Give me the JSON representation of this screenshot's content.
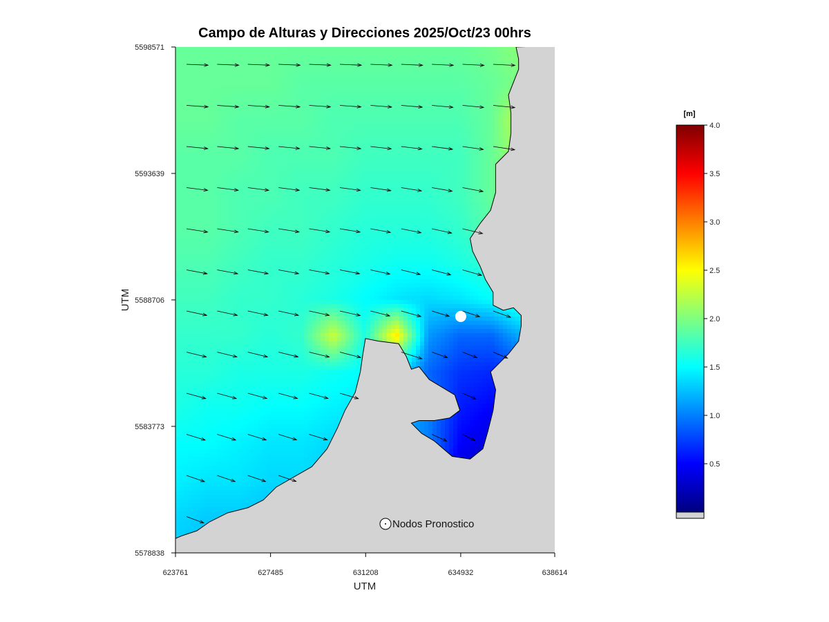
{
  "colors": {
    "land": "#d3d3d3",
    "coast": "#000000",
    "arrow": "#000000",
    "node": "#ffffff"
  },
  "chart_data": {
    "type": "heatmap",
    "title": "Campo de Alturas y Direcciones 2025/Oct/23  00hrs",
    "xlabel": "UTM",
    "ylabel": "UTM",
    "xlim": [
      623761,
      638614
    ],
    "ylim": [
      5578838,
      5598571
    ],
    "xticks": [
      "623761",
      "627485",
      "631208",
      "634932",
      "638614"
    ],
    "yticks": [
      "5578838",
      "5583773",
      "5588706",
      "5593639",
      "5598571"
    ],
    "colorbar": {
      "unit": "[m]",
      "range": [
        0,
        4.0
      ],
      "ticks": [
        "0.5",
        "1.0",
        "1.5",
        "2.0",
        "2.5",
        "3.0",
        "3.5",
        "4.0"
      ],
      "colormap": "jet"
    },
    "legend": {
      "label": "Nodos Pronostico",
      "position": "bottom-right"
    },
    "forecast_nodes": [
      {
        "x": 634932,
        "y": 5588060
      }
    ],
    "coastline_main": [
      [
        623761,
        5579400
      ],
      [
        624000,
        5579500
      ],
      [
        624600,
        5579700
      ],
      [
        625100,
        5580050
      ],
      [
        625800,
        5580400
      ],
      [
        626600,
        5580600
      ],
      [
        627200,
        5580900
      ],
      [
        627700,
        5581400
      ],
      [
        628400,
        5581800
      ],
      [
        629100,
        5582200
      ],
      [
        629700,
        5582900
      ],
      [
        630100,
        5583700
      ],
      [
        630400,
        5584400
      ],
      [
        630800,
        5585100
      ],
      [
        631000,
        5585900
      ],
      [
        631100,
        5586600
      ],
      [
        631200,
        5587200
      ],
      [
        631700,
        5587100
      ],
      [
        632500,
        5587000
      ],
      [
        632800,
        5586500
      ],
      [
        633000,
        5586000
      ],
      [
        633300,
        5586100
      ],
      [
        633700,
        5585600
      ],
      [
        634200,
        5585300
      ],
      [
        634700,
        5585000
      ],
      [
        634900,
        5584400
      ],
      [
        634500,
        5584100
      ],
      [
        633900,
        5584000
      ],
      [
        633300,
        5584000
      ],
      [
        633000,
        5583900
      ],
      [
        633400,
        5583500
      ],
      [
        633900,
        5583200
      ],
      [
        634600,
        5582600
      ],
      [
        635300,
        5582500
      ],
      [
        635800,
        5582900
      ],
      [
        636000,
        5583600
      ],
      [
        636200,
        5584400
      ],
      [
        636300,
        5585200
      ],
      [
        636100,
        5585900
      ],
      [
        636800,
        5586600
      ],
      [
        637200,
        5587100
      ],
      [
        637300,
        5587700
      ],
      [
        637300,
        5588100
      ],
      [
        637000,
        5588400
      ],
      [
        636600,
        5588300
      ],
      [
        636200,
        5588500
      ],
      [
        636200,
        5589000
      ],
      [
        635900,
        5589500
      ],
      [
        635700,
        5590000
      ],
      [
        635400,
        5590600
      ],
      [
        635300,
        5591100
      ],
      [
        635700,
        5591700
      ],
      [
        636100,
        5592200
      ],
      [
        636300,
        5592900
      ],
      [
        636300,
        5593500
      ],
      [
        636300,
        5594000
      ],
      [
        636800,
        5594500
      ],
      [
        636900,
        5595200
      ],
      [
        636900,
        5596000
      ],
      [
        636800,
        5596700
      ],
      [
        637000,
        5597200
      ],
      [
        637200,
        5597700
      ],
      [
        637200,
        5598100
      ],
      [
        637100,
        5598571
      ]
    ],
    "height_field_m": [
      [
        1.9,
        1.9,
        1.9,
        1.9,
        1.9,
        1.9,
        1.9,
        1.9,
        1.9,
        1.9,
        1.95,
        2.05,
        2.2
      ],
      [
        1.9,
        1.9,
        1.9,
        1.9,
        1.85,
        1.85,
        1.85,
        1.85,
        1.85,
        1.85,
        1.9,
        2.0,
        2.15
      ],
      [
        1.9,
        1.9,
        1.85,
        1.85,
        1.85,
        1.8,
        1.8,
        1.8,
        1.8,
        1.8,
        1.9,
        2.3,
        2.7
      ],
      [
        1.85,
        1.85,
        1.85,
        1.8,
        1.8,
        1.8,
        1.75,
        1.75,
        1.75,
        1.75,
        1.9,
        2.2,
        2.4
      ],
      [
        1.85,
        1.85,
        1.8,
        1.8,
        1.75,
        1.75,
        1.7,
        1.7,
        1.7,
        1.75,
        1.9,
        2.2,
        2.3
      ],
      [
        1.85,
        1.85,
        1.8,
        1.75,
        1.75,
        1.7,
        1.65,
        1.65,
        1.65,
        1.7,
        1.85,
        2.1,
        2.2
      ],
      [
        1.8,
        1.8,
        1.75,
        1.7,
        1.7,
        1.65,
        1.6,
        1.55,
        1.55,
        1.6,
        1.7,
        2.0,
        2.1
      ],
      [
        1.75,
        1.75,
        1.7,
        1.7,
        1.65,
        1.6,
        1.5,
        1.4,
        1.35,
        1.4,
        1.5,
        1.7,
        1.9
      ],
      [
        1.7,
        1.7,
        1.7,
        1.65,
        1.7,
        2.3,
        1.6,
        2.6,
        1.1,
        0.9,
        0.9,
        1.2,
        1.4
      ],
      [
        1.65,
        1.65,
        1.6,
        1.6,
        1.6,
        1.55,
        1.5,
        1.4,
        0.9,
        0.7,
        0.65,
        0.75,
        1.0
      ],
      [
        1.6,
        1.55,
        1.55,
        1.5,
        1.5,
        1.45,
        1.4,
        1.3,
        1.0,
        0.6,
        0.5,
        0.55,
        0.8
      ],
      [
        1.5,
        1.5,
        1.45,
        1.4,
        1.4,
        1.35,
        1.3,
        1.2,
        1.0,
        0.5,
        0.35,
        0.3,
        0.5
      ],
      [
        1.45,
        1.4,
        1.4,
        1.35,
        1.35,
        1.3,
        1.2,
        1.1,
        1.0,
        0.3,
        0.2,
        0.2,
        0.3
      ],
      [
        1.35,
        1.3,
        1.3,
        1.25,
        1.25,
        1.2,
        1.1,
        1.0,
        1.0,
        0.4,
        0.2,
        0.15,
        0.2
      ],
      [
        1.3,
        1.25,
        1.2,
        1.2,
        1.2,
        1.1,
        1.0,
        1.0,
        1.0,
        1.0,
        0.3,
        0.2,
        0.3
      ]
    ]
  }
}
